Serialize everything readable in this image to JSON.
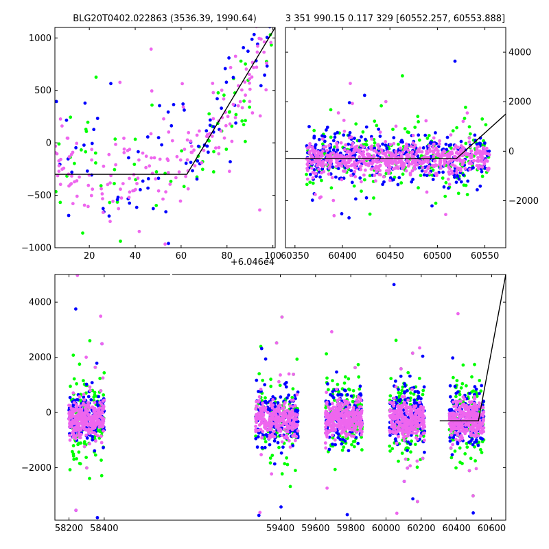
{
  "colors": {
    "green": "#00ff00",
    "blue": "#0000ff",
    "pink": "#ee66ee",
    "fit": "#000000",
    "frame": "#000000"
  },
  "chart_data": [
    {
      "id": "zoom",
      "type": "scatter",
      "title": "BLG20T0402.022863 (3536.39, 1990.64)",
      "x_offset_label": "+6.046e4",
      "xlim": [
        5,
        101
      ],
      "ylim": [
        -1000,
        1100
      ],
      "xticks": [
        20,
        40,
        60,
        80,
        100
      ],
      "xtick_labels": [
        "20",
        "40",
        "60",
        "80",
        "100"
      ],
      "yticks": [
        -1000,
        -500,
        0,
        500,
        1000
      ],
      "ytick_labels": [
        "−1000",
        "−500",
        "0",
        "500",
        "1000"
      ],
      "ytick_side": "left",
      "fit": {
        "x": [
          5,
          62.5,
          101
        ],
        "y": [
          -300,
          -300,
          1100
        ]
      },
      "series": [
        {
          "color": "green",
          "count": 70,
          "x_range": [
            5,
            100
          ],
          "clusters": [
            [
              5,
              60,
              -220,
              320
            ],
            [
              60,
              100,
              80,
              520
            ]
          ]
        },
        {
          "color": "blue",
          "count": 85,
          "x_range": [
            5,
            100
          ],
          "clusters": [
            [
              5,
              60,
              -250,
              320
            ],
            [
              60,
              100,
              120,
              520
            ]
          ]
        },
        {
          "color": "pink",
          "count": 180,
          "x_range": [
            5,
            100
          ],
          "clusters": [
            [
              5,
              60,
              -330,
              240
            ],
            [
              60,
              100,
              150,
              480
            ]
          ]
        }
      ]
    },
    {
      "id": "season",
      "type": "scatter",
      "title": "3 351 990.15 0.117 329 [60552.257, 60553.888]",
      "xlim": [
        60340,
        60572
      ],
      "ylim": [
        -3900,
        5000
      ],
      "xticks": [
        60350,
        60400,
        60450,
        60500,
        60550
      ],
      "xtick_labels": [
        "60350",
        "60400",
        "60450",
        "60500",
        "60550"
      ],
      "yticks": [
        -2000,
        0,
        2000,
        4000
      ],
      "ytick_labels": [
        "−2000",
        "0",
        "2000",
        "4000"
      ],
      "ytick_side": "right",
      "fit": {
        "x": [
          60340,
          60520,
          60572
        ],
        "y": [
          -300,
          -300,
          1500
        ]
      },
      "series": [
        {
          "color": "green",
          "count": 220,
          "x_range": [
            60362,
            60555
          ],
          "clusters": [
            [
              60362,
              60555,
              -250,
              650
            ]
          ]
        },
        {
          "color": "blue",
          "count": 320,
          "x_range": [
            60362,
            60555
          ],
          "clusters": [
            [
              60362,
              60555,
              -250,
              520
            ]
          ]
        },
        {
          "color": "pink",
          "count": 650,
          "x_range": [
            60362,
            60555
          ],
          "clusters": [
            [
              60362,
              60555,
              -300,
              320
            ]
          ]
        }
      ]
    },
    {
      "id": "all",
      "type": "scatter",
      "title": "",
      "xlim": [
        58120,
        60680
      ],
      "ylim": [
        -3900,
        5000
      ],
      "xticks": [
        58200,
        58400,
        59400,
        59600,
        59800,
        60000,
        60200,
        60400,
        60600
      ],
      "xtick_labels": [
        "58200",
        "58400",
        "59400",
        "59600",
        "59800",
        "60000",
        "60200",
        "60400",
        "60600"
      ],
      "yticks": [
        -2000,
        0,
        2000,
        4000
      ],
      "ytick_labels": [
        "−2000",
        "0",
        "2000",
        "4000"
      ],
      "ytick_side": "left",
      "x_breaks": [
        [
          58415,
          59240
        ]
      ],
      "seasons": [
        [
          58200,
          58400
        ],
        [
          59260,
          59500
        ],
        [
          59655,
          59865
        ],
        [
          60020,
          60220
        ],
        [
          60360,
          60555
        ]
      ],
      "fit": {
        "x": [
          60305,
          60525,
          60680
        ],
        "y": [
          -300,
          -300,
          5000
        ]
      },
      "series": [
        {
          "color": "green",
          "count": 600,
          "clusters": []
        },
        {
          "color": "blue",
          "count": 800,
          "clusters": []
        },
        {
          "color": "pink",
          "count": 1500,
          "clusters": []
        }
      ]
    }
  ]
}
